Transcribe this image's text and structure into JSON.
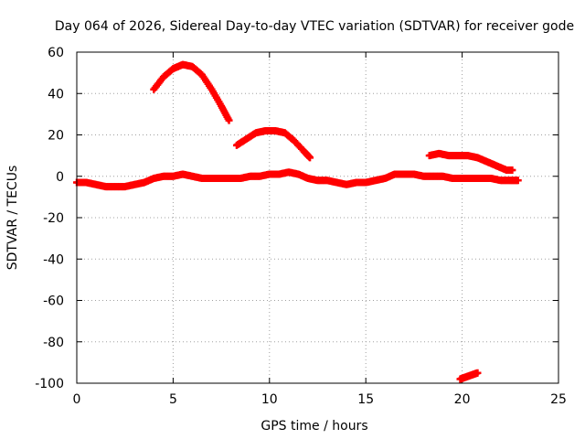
{
  "chart_data": {
    "type": "scatter",
    "title": "Day 064 of 2026, Sidereal Day-to-day VTEC variation (SDTVAR) for receiver gode",
    "xlabel": "GPS time / hours",
    "ylabel": "SDTVAR / TECUs",
    "xlim": [
      0,
      25
    ],
    "ylim": [
      -100,
      60
    ],
    "xticks": [
      0,
      5,
      10,
      15,
      20,
      25
    ],
    "yticks": [
      -100,
      -80,
      -60,
      -40,
      -20,
      0,
      20,
      40,
      60
    ],
    "xtick_labels": [
      "0",
      "5",
      "10",
      "15",
      "20",
      "25"
    ],
    "ytick_labels": [
      "-100",
      "-80",
      "-60",
      "-40",
      "-20",
      "0",
      "20",
      "40",
      "60"
    ],
    "grid": true,
    "marker": "+",
    "color": "#ff0000",
    "series": [
      {
        "name": "main",
        "x": [
          0.0,
          0.5,
          1.0,
          1.5,
          2.0,
          2.5,
          3.0,
          3.5,
          4.0,
          4.5,
          5.0,
          5.5,
          6.0,
          6.5,
          7.0,
          7.5,
          8.0,
          8.5,
          9.0,
          9.5,
          10.0,
          10.5,
          11.0,
          11.5,
          12.0,
          12.5,
          13.0,
          13.5,
          14.0,
          14.5,
          15.0,
          15.5,
          16.0,
          16.5,
          17.0,
          17.5,
          18.0,
          18.5,
          19.0,
          19.5,
          20.0,
          20.5,
          21.0,
          21.5,
          22.0,
          22.5,
          22.9
        ],
        "y": [
          -3,
          -3,
          -4,
          -5,
          -5,
          -5,
          -4,
          -3,
          -1,
          0,
          0,
          1,
          0,
          -1,
          -1,
          -1,
          -1,
          -1,
          0,
          0,
          1,
          1,
          2,
          1,
          -1,
          -2,
          -2,
          -3,
          -4,
          -3,
          -3,
          -2,
          -1,
          1,
          1,
          1,
          0,
          0,
          0,
          -1,
          -1,
          -1,
          -1,
          -1,
          -2,
          -2,
          -2
        ]
      },
      {
        "name": "arc1",
        "x": [
          4.0,
          4.5,
          5.0,
          5.5,
          6.0,
          6.5,
          7.0,
          7.5,
          7.9
        ],
        "y": [
          42,
          48,
          52,
          54,
          53,
          49,
          42,
          34,
          27
        ]
      },
      {
        "name": "arc2",
        "x": [
          8.3,
          8.8,
          9.3,
          9.8,
          10.3,
          10.8,
          11.3,
          11.8,
          12.1
        ],
        "y": [
          15,
          18,
          21,
          22,
          22,
          21,
          17,
          12,
          9
        ]
      },
      {
        "name": "arc3",
        "x": [
          18.3,
          18.8,
          19.3,
          19.8,
          20.3,
          20.8,
          21.3,
          21.8,
          22.3,
          22.6
        ],
        "y": [
          10,
          11,
          10,
          10,
          10,
          9,
          7,
          5,
          3,
          3
        ]
      },
      {
        "name": "drop",
        "x": [
          19.9,
          20.2,
          20.5,
          20.8
        ],
        "y": [
          -98,
          -97,
          -96,
          -95
        ]
      }
    ]
  }
}
